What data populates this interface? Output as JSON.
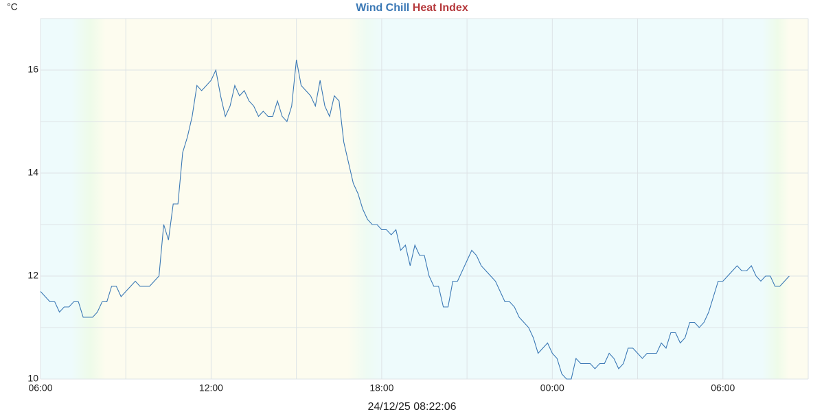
{
  "chart_data": {
    "type": "line",
    "y_label": "°C",
    "x_label": "24/12/25 08:22:06",
    "extra_legend": {
      "name": "Heat Index",
      "color": "#b5383b"
    },
    "xlim": [
      0,
      1620
    ],
    "xticks": [
      {
        "value": 0,
        "label": "06:00"
      },
      {
        "value": 360,
        "label": "12:00"
      },
      {
        "value": 720,
        "label": "18:00"
      },
      {
        "value": 1080,
        "label": "00:00"
      },
      {
        "value": 1440,
        "label": "06:00"
      }
    ],
    "xgrid": [
      180,
      540,
      900,
      1260,
      1620
    ],
    "ylim": [
      10,
      17
    ],
    "yticks": [
      10,
      12,
      14,
      16
    ],
    "ygrid": [
      11,
      13,
      15,
      17
    ],
    "grid": true,
    "x": [
      0,
      10,
      20,
      30,
      40,
      50,
      60,
      70,
      80,
      90,
      100,
      110,
      120,
      130,
      140,
      150,
      160,
      170,
      180,
      190,
      200,
      210,
      220,
      230,
      240,
      250,
      260,
      270,
      280,
      290,
      300,
      310,
      320,
      330,
      340,
      350,
      360,
      370,
      380,
      390,
      400,
      410,
      420,
      430,
      440,
      450,
      460,
      470,
      480,
      490,
      500,
      510,
      520,
      530,
      540,
      550,
      560,
      570,
      580,
      590,
      600,
      610,
      620,
      630,
      640,
      650,
      660,
      670,
      680,
      690,
      700,
      710,
      720,
      730,
      740,
      750,
      760,
      770,
      780,
      790,
      800,
      810,
      820,
      830,
      840,
      850,
      860,
      870,
      880,
      890,
      900,
      910,
      920,
      930,
      940,
      950,
      960,
      970,
      980,
      990,
      1000,
      1010,
      1020,
      1030,
      1040,
      1050,
      1060,
      1070,
      1080,
      1090,
      1100,
      1110,
      1120,
      1130,
      1140,
      1150,
      1160,
      1170,
      1180,
      1190,
      1200,
      1210,
      1220,
      1230,
      1240,
      1250,
      1260,
      1270,
      1280,
      1290,
      1300,
      1310,
      1320,
      1330,
      1340,
      1350,
      1360,
      1370,
      1380,
      1390,
      1400,
      1410,
      1420,
      1430,
      1440,
      1450,
      1460,
      1470,
      1480,
      1490,
      1500,
      1510,
      1520,
      1530,
      1540,
      1550,
      1560,
      1570,
      1580
    ],
    "series": [
      {
        "name": "Wind Chill",
        "color": "#3a78b5",
        "values": [
          11.7,
          11.6,
          11.5,
          11.5,
          11.3,
          11.4,
          11.4,
          11.5,
          11.5,
          11.2,
          11.2,
          11.2,
          11.3,
          11.5,
          11.5,
          11.8,
          11.8,
          11.6,
          11.7,
          11.8,
          11.9,
          11.8,
          11.8,
          11.8,
          11.9,
          12.0,
          13.0,
          12.7,
          13.4,
          13.4,
          14.4,
          14.7,
          15.1,
          15.7,
          15.6,
          15.7,
          15.8,
          16.0,
          15.5,
          15.1,
          15.3,
          15.7,
          15.5,
          15.6,
          15.4,
          15.3,
          15.1,
          15.2,
          15.1,
          15.1,
          15.4,
          15.1,
          15.0,
          15.3,
          16.2,
          15.7,
          15.6,
          15.5,
          15.3,
          15.8,
          15.3,
          15.1,
          15.5,
          15.4,
          14.6,
          14.2,
          13.8,
          13.6,
          13.3,
          13.1,
          13.0,
          13.0,
          12.9,
          12.9,
          12.8,
          12.9,
          12.5,
          12.6,
          12.2,
          12.6,
          12.4,
          12.4,
          12.0,
          11.8,
          11.8,
          11.4,
          11.4,
          11.9,
          11.9,
          12.1,
          12.3,
          12.5,
          12.4,
          12.2,
          12.1,
          12.0,
          11.9,
          11.7,
          11.5,
          11.5,
          11.4,
          11.2,
          11.1,
          11.0,
          10.8,
          10.5,
          10.6,
          10.7,
          10.5,
          10.4,
          10.1,
          10.0,
          10.0,
          10.4,
          10.3,
          10.3,
          10.3,
          10.2,
          10.3,
          10.3,
          10.5,
          10.4,
          10.2,
          10.3,
          10.6,
          10.6,
          10.5,
          10.4,
          10.5,
          10.5,
          10.5,
          10.7,
          10.6,
          10.9,
          10.9,
          10.7,
          10.8,
          11.1,
          11.1,
          11.0,
          11.1,
          11.3,
          11.6,
          11.9,
          11.9,
          12.0,
          12.1,
          12.2,
          12.1,
          12.1,
          12.2,
          12.0,
          11.9,
          12.0,
          12.0,
          11.8,
          11.8,
          11.9,
          12.0
        ]
      }
    ]
  }
}
